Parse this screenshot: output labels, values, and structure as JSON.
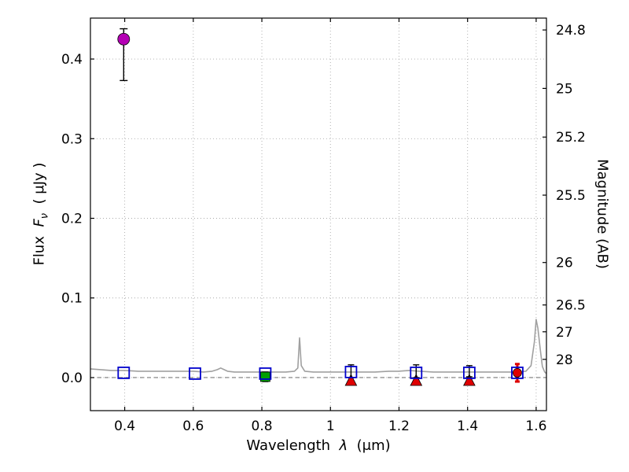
{
  "figure": {
    "background": "#ffffff",
    "labels": {
      "x": {
        "word": "Wavelength",
        "symbol": "λ",
        "units": "(μm)"
      },
      "y1": {
        "word": "Flux",
        "symbol": "F",
        "symbol_sub": "ν",
        "units": "( μJy )"
      },
      "y2": "Magnitude (AB)"
    }
  },
  "chart_data": {
    "type": "scatter",
    "title": "",
    "xlabel": "Wavelength λ (μm)",
    "ylabel": "Flux Fν ( μJy )",
    "y2label": "Magnitude (AB)",
    "xlim": [
      0.3,
      1.63
    ],
    "ylim": [
      -0.0415,
      0.4514
    ],
    "grid": true,
    "legend": "none",
    "xticks": [
      0.4,
      0.6,
      0.8,
      1.0,
      1.2,
      1.4,
      1.6
    ],
    "xtick_labels": [
      "0.4",
      "0.6",
      "0.8",
      "1",
      "1.2",
      "1.4",
      "1.6"
    ],
    "yticks": [
      0.0,
      0.1,
      0.2,
      0.3,
      0.4
    ],
    "ytick_labels": [
      "0.0",
      "0.1",
      "0.2",
      "0.3",
      "0.4"
    ],
    "y2ticks": [
      {
        "label": "24.8",
        "flux": 0.4365
      },
      {
        "label": "25",
        "flux": 0.3631
      },
      {
        "label": "25.2",
        "flux": 0.302
      },
      {
        "label": "25.5",
        "flux": 0.2291
      },
      {
        "label": "26",
        "flux": 0.1445
      },
      {
        "label": "26.5",
        "flux": 0.0912
      },
      {
        "label": "27",
        "flux": 0.0575
      },
      {
        "label": "28",
        "flux": 0.0229
      }
    ],
    "zero_line_flux": 0.0,
    "spectrum": {
      "name": "model-spectrum",
      "color": "#a0a0a0",
      "points": [
        [
          0.3,
          0.011
        ],
        [
          0.33,
          0.01
        ],
        [
          0.36,
          0.009
        ],
        [
          0.4,
          0.009
        ],
        [
          0.44,
          0.008
        ],
        [
          0.48,
          0.008
        ],
        [
          0.52,
          0.008
        ],
        [
          0.56,
          0.008
        ],
        [
          0.6,
          0.008
        ],
        [
          0.63,
          0.007
        ],
        [
          0.655,
          0.008
        ],
        [
          0.67,
          0.01
        ],
        [
          0.68,
          0.012
        ],
        [
          0.69,
          0.01
        ],
        [
          0.7,
          0.008
        ],
        [
          0.72,
          0.007
        ],
        [
          0.75,
          0.007
        ],
        [
          0.78,
          0.007
        ],
        [
          0.81,
          0.007
        ],
        [
          0.84,
          0.007
        ],
        [
          0.87,
          0.007
        ],
        [
          0.895,
          0.008
        ],
        [
          0.905,
          0.012
        ],
        [
          0.91,
          0.05
        ],
        [
          0.915,
          0.015
        ],
        [
          0.925,
          0.008
        ],
        [
          0.95,
          0.007
        ],
        [
          0.98,
          0.007
        ],
        [
          1.01,
          0.007
        ],
        [
          1.05,
          0.007
        ],
        [
          1.09,
          0.007
        ],
        [
          1.13,
          0.007
        ],
        [
          1.17,
          0.008
        ],
        [
          1.2,
          0.008
        ],
        [
          1.23,
          0.009
        ],
        [
          1.26,
          0.008
        ],
        [
          1.3,
          0.007
        ],
        [
          1.34,
          0.007
        ],
        [
          1.38,
          0.007
        ],
        [
          1.42,
          0.007
        ],
        [
          1.46,
          0.007
        ],
        [
          1.5,
          0.007
        ],
        [
          1.54,
          0.007
        ],
        [
          1.57,
          0.008
        ],
        [
          1.585,
          0.015
        ],
        [
          1.595,
          0.045
        ],
        [
          1.6,
          0.073
        ],
        [
          1.605,
          0.062
        ],
        [
          1.612,
          0.035
        ],
        [
          1.618,
          0.014
        ],
        [
          1.625,
          0.007
        ],
        [
          1.63,
          0.005
        ]
      ]
    },
    "series": [
      {
        "name": "magenta-detection",
        "marker": "circle",
        "color": "#b400b4",
        "size": 15,
        "err_color": "#000000",
        "err_width": 1.4,
        "cap": 5,
        "points": [
          {
            "x": 0.397,
            "y": 0.425,
            "err_lo": 0.052,
            "err_hi": 0.013
          }
        ]
      },
      {
        "name": "green-square-detection",
        "marker": "square",
        "color": "#00a000",
        "size": 12,
        "err_color": "#000000",
        "err_width": 1.4,
        "cap": 4,
        "points": [
          {
            "x": 0.81,
            "y": 0.001,
            "err_lo": 0.006,
            "err_hi": 0.006
          }
        ]
      },
      {
        "name": "red-upper-limit-triangles",
        "marker": "triangle-up",
        "color": "#e00000",
        "size": 12,
        "err_color": "#000000",
        "err_width": 1.4,
        "cap": 4,
        "points": [
          {
            "x": 1.06,
            "y": -0.004
          },
          {
            "x": 1.25,
            "y": -0.004
          },
          {
            "x": 1.405,
            "y": -0.004
          }
        ]
      },
      {
        "name": "red-circle-detection",
        "marker": "circle",
        "color": "#e00000",
        "size": 11,
        "err_color": "#dd0000",
        "err_width": 3,
        "cap": 3,
        "points": [
          {
            "x": 1.545,
            "y": 0.006,
            "err_lo": 0.011,
            "err_hi": 0.011
          }
        ]
      },
      {
        "name": "blue-open-squares",
        "marker": "square-open",
        "color": "#0000cc",
        "size": 14,
        "err_color": "#000000",
        "err_width": 1.4,
        "cap": 4,
        "points": [
          {
            "x": 0.397,
            "y": 0.006
          },
          {
            "x": 0.605,
            "y": 0.005
          },
          {
            "x": 0.81,
            "y": 0.005
          },
          {
            "x": 1.06,
            "y": 0.007,
            "err_lo": 0.007,
            "err_hi": 0.009
          },
          {
            "x": 1.25,
            "y": 0.006,
            "err_lo": 0.006,
            "err_hi": 0.01
          },
          {
            "x": 1.405,
            "y": 0.006,
            "err_lo": 0.005,
            "err_hi": 0.009
          },
          {
            "x": 1.545,
            "y": 0.006
          }
        ]
      }
    ]
  }
}
